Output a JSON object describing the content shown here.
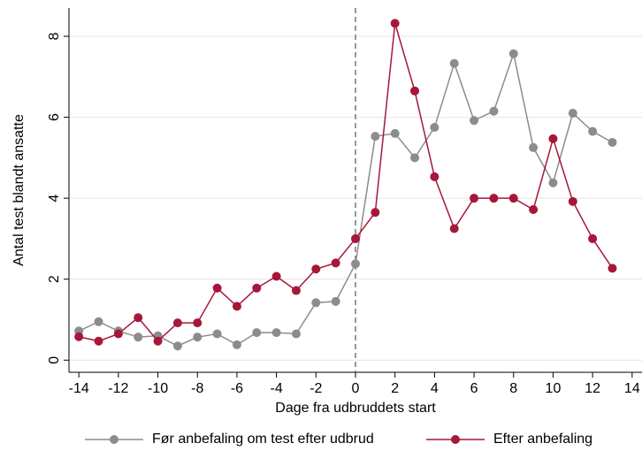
{
  "chart_data": {
    "type": "line",
    "x_label": "Dage fra udbruddets start",
    "y_label": "Antal test blandt ansatte",
    "x": [
      -14,
      -13,
      -12,
      -11,
      -10,
      -9,
      -8,
      -7,
      -6,
      -5,
      -4,
      -3,
      -2,
      -1,
      0,
      1,
      2,
      3,
      4,
      5,
      6,
      7,
      8,
      9,
      10,
      11,
      12,
      13
    ],
    "series": [
      {
        "name": "Før anbefaling om test efter udbrud",
        "color": "#8c8c8c",
        "values": [
          0.72,
          0.95,
          0.72,
          0.57,
          0.6,
          0.35,
          0.57,
          0.65,
          0.38,
          0.68,
          0.68,
          0.65,
          1.42,
          1.45,
          2.38,
          5.53,
          5.6,
          5.0,
          5.75,
          7.33,
          5.92,
          6.15,
          7.57,
          5.25,
          4.38,
          6.1,
          5.65,
          5.38
        ]
      },
      {
        "name": "Efter anbefaling",
        "color": "#a6173a",
        "values": [
          0.58,
          0.47,
          0.65,
          1.05,
          0.47,
          0.92,
          0.92,
          1.78,
          1.33,
          1.78,
          2.07,
          1.72,
          2.25,
          2.4,
          3.0,
          3.65,
          8.32,
          6.65,
          4.53,
          3.25,
          4.0,
          4.0,
          4.0,
          3.72,
          5.47,
          3.92,
          3.0,
          2.27
        ]
      }
    ],
    "xlim": [
      -14.5,
      14.5
    ],
    "xticks": [
      -14,
      -12,
      -10,
      -8,
      -6,
      -4,
      -2,
      0,
      2,
      4,
      6,
      8,
      10,
      12,
      14
    ],
    "ylim": [
      -0.3,
      8.7
    ],
    "yticks": [
      0,
      2,
      4,
      6,
      8
    ],
    "grid": true,
    "vline": 0,
    "legend": "bottom"
  }
}
